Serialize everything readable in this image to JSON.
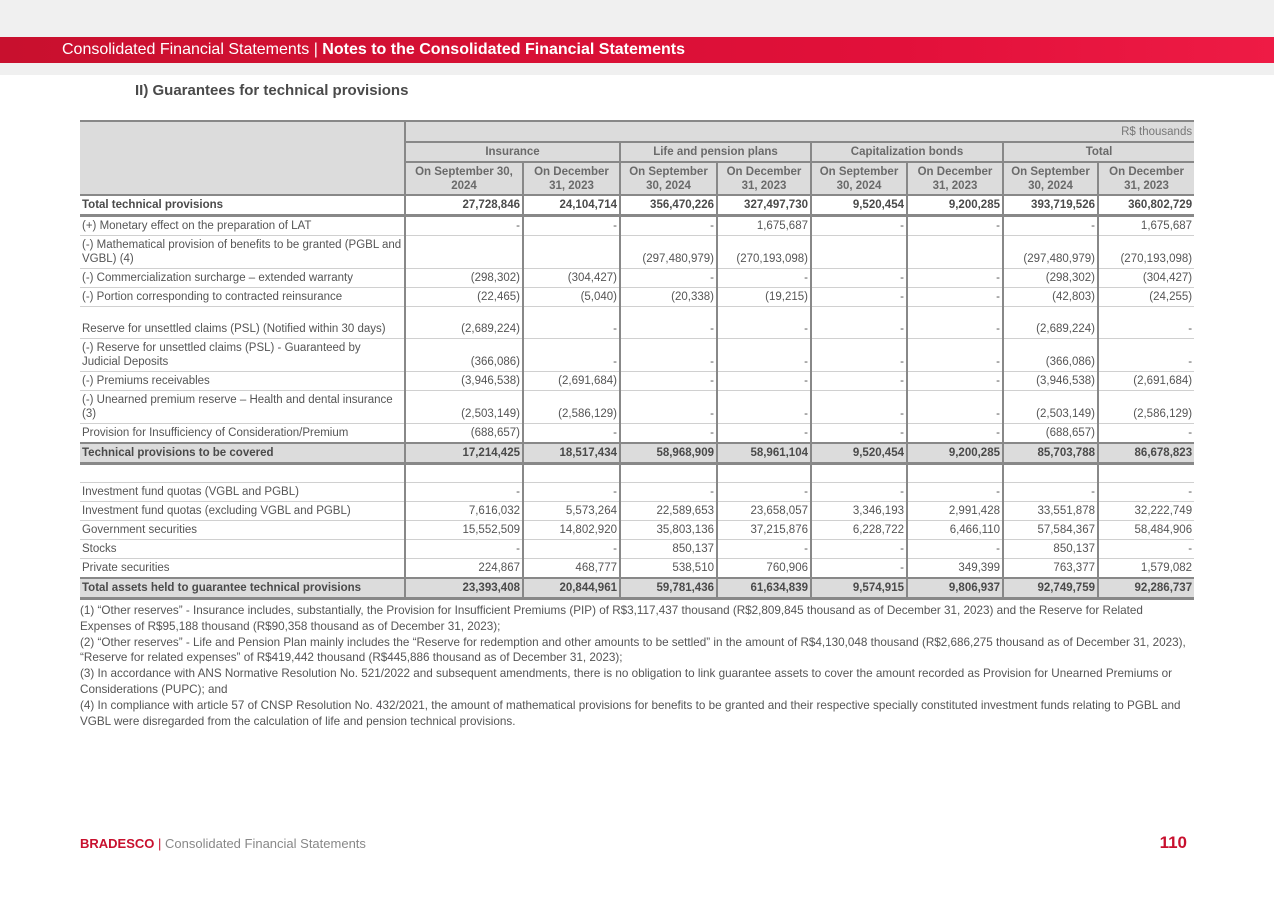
{
  "header": {
    "section": "Consolidated Financial Statements",
    "separator": " | ",
    "subsection": "Notes to the Consolidated Financial Statements"
  },
  "title": "II) Guarantees for technical provisions",
  "table": {
    "unit": "R$ thousands",
    "groups": [
      "Insurance",
      "Life and pension plans",
      "Capitalization bonds",
      "Total"
    ],
    "columns": [
      "On September 30, 2024",
      "On December 31, 2023",
      "On September 30, 2024",
      "On December 31, 2023",
      "On September 30, 2024",
      "On December 31, 2023",
      "On September 30, 2024",
      "On December 31, 2023"
    ],
    "rows": [
      {
        "label": "Total technical provisions",
        "style": "tot",
        "values": [
          "27,728,846",
          "24,104,714",
          "356,470,226",
          "327,497,730",
          "9,520,454",
          "9,200,285",
          "393,719,526",
          "360,802,729"
        ]
      },
      {
        "label": "(+) Monetary effect on the preparation of LAT",
        "values": [
          "-",
          "-",
          "-",
          "1,675,687",
          "-",
          "-",
          "-",
          "1,675,687"
        ]
      },
      {
        "label": "(-) Mathematical provision of benefits to be granted (PGBL and VGBL) (4)",
        "style": "dbl",
        "values": [
          "",
          "",
          "(297,480,979)",
          "(270,193,098)",
          "",
          "",
          "(297,480,979)",
          "(270,193,098)"
        ]
      },
      {
        "label": "(-) Commercialization surcharge – extended warranty",
        "values": [
          "(298,302)",
          "(304,427)",
          "-",
          "-",
          "-",
          "-",
          "(298,302)",
          "(304,427)"
        ]
      },
      {
        "label": "(-) Portion corresponding to contracted reinsurance",
        "values": [
          "(22,465)",
          "(5,040)",
          "(20,338)",
          "(19,215)",
          "-",
          "-",
          "(42,803)",
          "(24,255)"
        ]
      },
      {
        "label": "Reserve for unsettled claims (PSL) (Notified within 30 days)",
        "style": "dbl",
        "values": [
          "(2,689,224)",
          "-",
          "-",
          "-",
          "-",
          "-",
          "(2,689,224)",
          "-"
        ]
      },
      {
        "label": "(-) Reserve for unsettled claims (PSL) - Guaranteed by Judicial Deposits",
        "style": "dbl",
        "values": [
          "(366,086)",
          "-",
          "-",
          "-",
          "-",
          "-",
          "(366,086)",
          "-"
        ]
      },
      {
        "label": "(-) Premiums receivables",
        "values": [
          "(3,946,538)",
          "(2,691,684)",
          "-",
          "-",
          "-",
          "-",
          "(3,946,538)",
          "(2,691,684)"
        ]
      },
      {
        "label": "(-) Unearned premium reserve – Health and dental insurance (3)",
        "style": "dbl",
        "values": [
          "(2,503,149)",
          "(2,586,129)",
          "-",
          "-",
          "-",
          "-",
          "(2,503,149)",
          "(2,586,129)"
        ]
      },
      {
        "label": "Provision for Insufficiency of Consideration/Premium",
        "values": [
          "(688,657)",
          "-",
          "-",
          "-",
          "-",
          "-",
          "(688,657)",
          "-"
        ]
      },
      {
        "label": "Technical provisions to be covered",
        "style": "tot grey",
        "values": [
          "17,214,425",
          "18,517,434",
          "58,968,909",
          "58,961,104",
          "9,520,454",
          "9,200,285",
          "85,703,788",
          "86,678,823"
        ]
      },
      {
        "label": "",
        "values": [
          "",
          "",
          "",
          "",
          "",
          "",
          "",
          ""
        ]
      },
      {
        "label": "Investment fund quotas (VGBL and PGBL)",
        "values": [
          "-",
          "-",
          "-",
          "-",
          "-",
          "-",
          "-",
          "-"
        ]
      },
      {
        "label": "Investment fund quotas (excluding VGBL and PGBL)",
        "values": [
          "7,616,032",
          "5,573,264",
          "22,589,653",
          "23,658,057",
          "3,346,193",
          "2,991,428",
          "33,551,878",
          "32,222,749"
        ]
      },
      {
        "label": "Government securities",
        "values": [
          "15,552,509",
          "14,802,920",
          "35,803,136",
          "37,215,876",
          "6,228,722",
          "6,466,110",
          "57,584,367",
          "58,484,906"
        ]
      },
      {
        "label": "Stocks",
        "values": [
          "-",
          "-",
          "850,137",
          "-",
          "-",
          "-",
          "850,137",
          "-"
        ]
      },
      {
        "label": "Private securities",
        "values": [
          "224,867",
          "468,777",
          "538,510",
          "760,906",
          "-",
          "349,399",
          "763,377",
          "1,579,082"
        ]
      },
      {
        "label": "Total assets held to guarantee technical provisions",
        "style": "tot grey",
        "values": [
          "23,393,408",
          "20,844,961",
          "59,781,436",
          "61,634,839",
          "9,574,915",
          "9,806,937",
          "92,749,759",
          "92,286,737"
        ]
      }
    ]
  },
  "notes": [
    "(1) “Other reserves” - Insurance includes, substantially, the Provision for Insufficient Premiums (PIP) of R$3,117,437 thousand (R$2,809,845 thousand as of December 31, 2023) and the Reserve for Related Expenses of R$95,188 thousand (R$90,358 thousand as of December 31, 2023);",
    "(2) “Other reserves” - Life and Pension Plan mainly includes the “Reserve for redemption and other amounts to be settled” in the amount of R$4,130,048 thousand (R$2,686,275 thousand as of December 31, 2023), “Reserve for related expenses” of R$419,442 thousand (R$445,886 thousand as of December 31, 2023);",
    "(3) In accordance with ANS Normative Resolution No. 521/2022 and subsequent amendments, there is no obligation to link guarantee assets to cover the amount recorded as Provision for Unearned Premiums or Considerations (PUPC); and",
    "(4) In compliance with article 57 of CNSP Resolution No. 432/2021, the amount of mathematical provisions for benefits to be granted and their respective specially constituted investment funds relating to PGBL and VGBL were disregarded from the calculation of life and pension technical provisions."
  ],
  "footer": {
    "brand": "BRADESCO",
    "separator": " | ",
    "text": "Consolidated Financial Statements",
    "page": "110"
  },
  "colors": {
    "accent": "#c8102e",
    "header_fill": "#dcdcdc"
  }
}
